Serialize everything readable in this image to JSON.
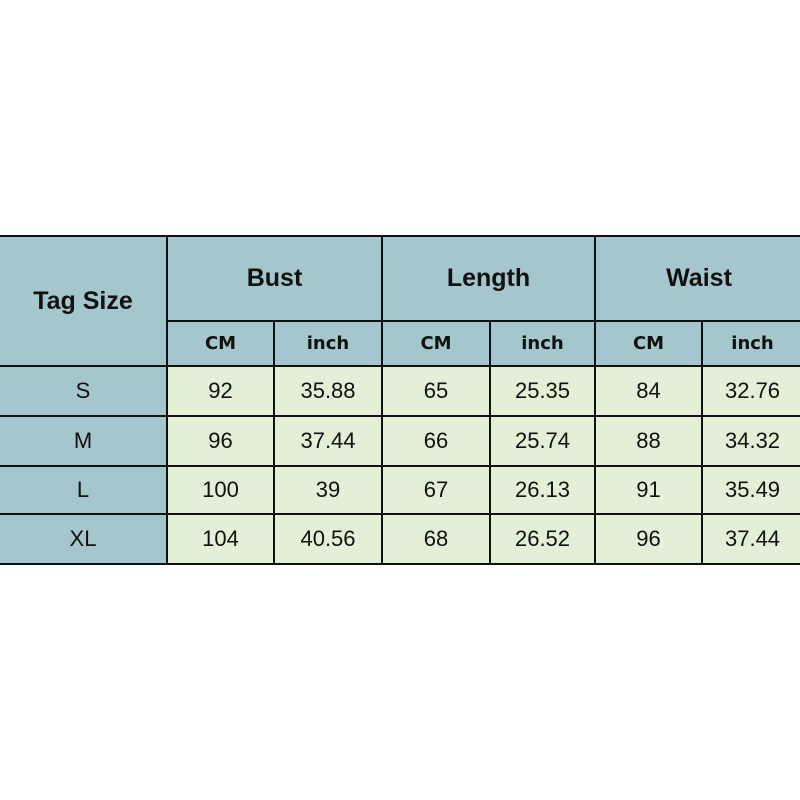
{
  "table": {
    "corner": "Tag Size",
    "groups": [
      "Bust",
      "Length",
      "Waist"
    ],
    "units": [
      "CM",
      "inch",
      "CM",
      "inch",
      "CM",
      "inch"
    ],
    "rows": [
      {
        "size": "S",
        "values": [
          "92",
          "35.88",
          "65",
          "25.35",
          "84",
          "32.76"
        ]
      },
      {
        "size": "M",
        "values": [
          "96",
          "37.44",
          "66",
          "25.74",
          "88",
          "34.32"
        ]
      },
      {
        "size": "L",
        "values": [
          "100",
          "39",
          "67",
          "26.13",
          "91",
          "35.49"
        ]
      },
      {
        "size": "XL",
        "values": [
          "104",
          "40.56",
          "68",
          "26.52",
          "96",
          "37.44"
        ]
      }
    ]
  },
  "colors": {
    "header": "#a4c6cc",
    "cell": "#e3efd6",
    "border": "#111111"
  }
}
